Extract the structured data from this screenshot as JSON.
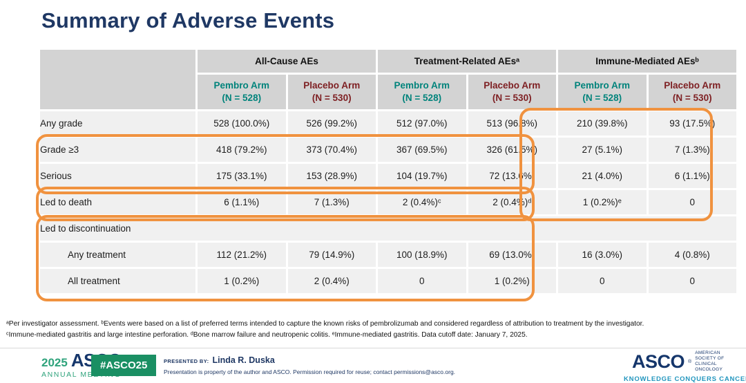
{
  "slide": {
    "title": "Summary of Adverse Events"
  },
  "table": {
    "groups": [
      "All-Cause AEs",
      "Treatment-Related AEsᵃ",
      "Immune-Mediated AEsᵇ"
    ],
    "arms": [
      {
        "name": "Pembro Arm",
        "n": "(N = 528)"
      },
      {
        "name": "Placebo Arm",
        "n": "(N = 530)"
      },
      {
        "name": "Pembro Arm",
        "n": "(N = 528)"
      },
      {
        "name": "Placebo Arm",
        "n": "(N = 530)"
      },
      {
        "name": "Pembro Arm",
        "n": "(N = 528)"
      },
      {
        "name": "Placebo Arm",
        "n": "(N = 530)"
      }
    ],
    "rows": [
      {
        "label": "Any grade",
        "values": [
          "528 (100.0%)",
          "526 (99.2%)",
          "512 (97.0%)",
          "513 (96.8%)",
          "210 (39.8%)",
          "93 (17.5%)"
        ]
      },
      {
        "label": "Grade ≥3",
        "values": [
          "418 (79.2%)",
          "373 (70.4%)",
          "367 (69.5%)",
          "326 (61.5%)",
          "27 (5.1%)",
          "7 (1.3%)"
        ]
      },
      {
        "label": "Serious",
        "values": [
          "175 (33.1%)",
          "153 (28.9%)",
          "104 (19.7%)",
          "72 (13.6%)",
          "21 (4.0%)",
          "6 (1.1%)"
        ]
      },
      {
        "label": "Led to death",
        "values": [
          "6 (1.1%)",
          "7 (1.3%)",
          "2 (0.4%)ᶜ",
          "2 (0.4%)ᵈ",
          "1 (0.2%)ᵉ",
          "0"
        ]
      },
      {
        "label": "Led to discontinuation",
        "values": []
      },
      {
        "label": "Any treatment",
        "values": [
          "112 (21.2%)",
          "79 (14.9%)",
          "100 (18.9%)",
          "69 (13.0%)",
          "16 (3.0%)",
          "4 (0.8%)"
        ]
      },
      {
        "label": "All treatment",
        "values": [
          "1 (0.2%)",
          "2 (0.4%)",
          "0",
          "1 (0.2%)",
          "0",
          "0"
        ]
      }
    ]
  },
  "footnotes": {
    "line1": "ᵃPer investigator assessment. ᵇEvents were based on a list of preferred terms intended to capture the known risks of pembrolizumab and considered regardless of attribution to treatment by the investigator.",
    "line2": "ᶜImmune-mediated gastritis and large intestine perforation. ᵈBone marrow failure and neutropenic colitis. ᵉImmune-mediated gastritis.  Data cutoff date: January 7, 2025."
  },
  "footer": {
    "year": "2025",
    "asco_wordmark": "ASCO",
    "registered_mark": "®",
    "annual_meeting": "ANNUAL MEETING",
    "hashtag": "#ASCO25",
    "presented_by_label": "PRESENTED BY:",
    "presenter": "Linda R. Duska",
    "permission": "Presentation is property of the author and ASCO. Permission required for reuse; contact permissions@asco.org.",
    "asco_logo": "ASCO",
    "society_line1": "AMERICAN SOCIETY OF",
    "society_line2": "CLINICAL ONCOLOGY",
    "tagline": "KNOWLEDGE CONQUERS CANCER"
  },
  "colors": {
    "title_navy": "#1F3864",
    "pembro_teal": "#00837B",
    "placebo_maroon": "#7E2023",
    "header_gray": "#D3D3D3",
    "row_gray": "#F0F0F0",
    "highlight_orange": "#F0923F",
    "footer_navy": "#15366B",
    "footer_green": "#2FA37C",
    "badge_green": "#1A8F63",
    "tagline_blue": "#2296BE"
  }
}
